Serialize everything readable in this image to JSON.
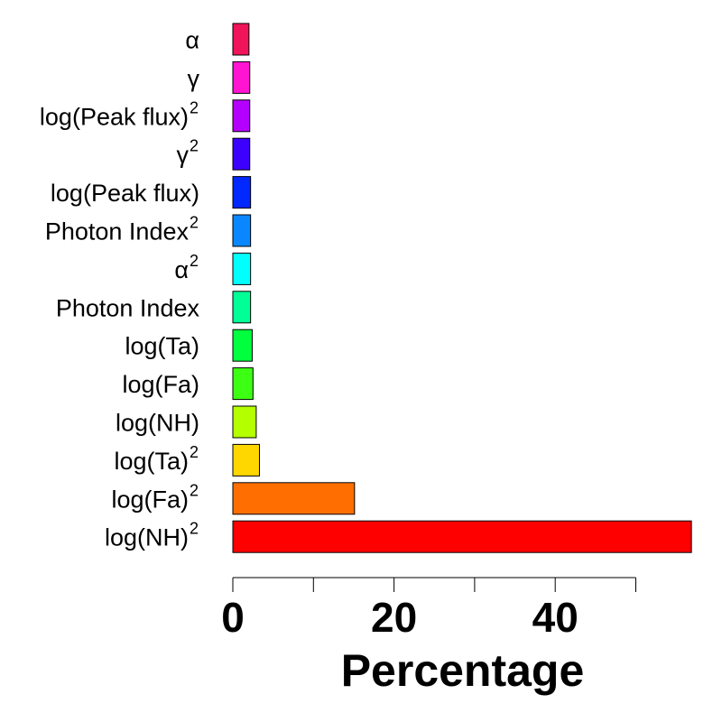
{
  "chart_data": {
    "type": "bar",
    "orientation": "horizontal",
    "xlabel": "Percentage",
    "xlim": [
      0,
      57
    ],
    "xticks": [
      0,
      10,
      20,
      30,
      40,
      50
    ],
    "xtick_labels": [
      "0",
      "",
      "20",
      "",
      "40",
      ""
    ],
    "grid": false,
    "categories": [
      {
        "base": "α",
        "sup": ""
      },
      {
        "base": "γ",
        "sup": ""
      },
      {
        "base": "log(Peak flux)",
        "sup": "2"
      },
      {
        "base": "γ",
        "sup": "2"
      },
      {
        "base": "log(Peak flux)",
        "sup": ""
      },
      {
        "base": "Photon Index",
        "sup": "2"
      },
      {
        "base": "α",
        "sup": "2"
      },
      {
        "base": "Photon Index",
        "sup": ""
      },
      {
        "base": "log(Ta)",
        "sup": ""
      },
      {
        "base": "log(Fa)",
        "sup": ""
      },
      {
        "base": "log(NH)",
        "sup": ""
      },
      {
        "base": "log(Ta)",
        "sup": "2"
      },
      {
        "base": "log(Fa)",
        "sup": "2"
      },
      {
        "base": "log(NH)",
        "sup": "2"
      }
    ],
    "values": [
      2.0,
      2.1,
      2.1,
      2.1,
      2.2,
      2.2,
      2.2,
      2.2,
      2.4,
      2.5,
      2.9,
      3.3,
      15.1,
      56.9
    ],
    "colors": [
      "#F0145A",
      "#FF14D2",
      "#B400FF",
      "#3C00FF",
      "#0028FF",
      "#0A87FF",
      "#00FFFF",
      "#00FF96",
      "#00FF3C",
      "#3CFF14",
      "#B4FF00",
      "#FFD700",
      "#FF6E00",
      "#FF0000"
    ]
  }
}
